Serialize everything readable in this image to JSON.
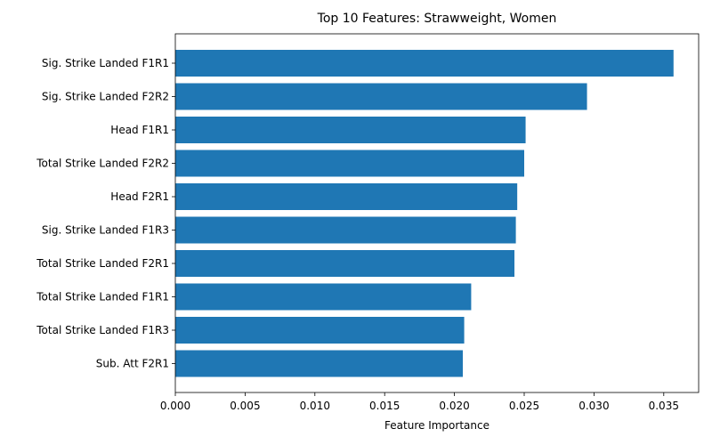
{
  "chart_data": {
    "type": "bar",
    "orientation": "horizontal",
    "title": "Top 10 Features: Strawweight, Women",
    "xlabel": "Feature Importance",
    "ylabel": "",
    "xlim": [
      0,
      0.0375
    ],
    "xticks": [
      "0.000",
      "0.005",
      "0.010",
      "0.015",
      "0.020",
      "0.025",
      "0.030",
      "0.035"
    ],
    "grid": false,
    "bar_color": "#1f77b4",
    "categories": [
      "Sig. Strike Landed F1R1",
      "Sig. Strike Landed F2R2",
      "Head F1R1",
      "Total Strike Landed F2R2",
      "Head F2R1",
      "Sig. Strike Landed F1R3",
      "Total Strike Landed F2R1",
      "Total Strike Landed F1R1",
      "Total Strike Landed F1R3",
      "Sub. Att F2R1"
    ],
    "values": [
      0.0357,
      0.0295,
      0.0251,
      0.025,
      0.0245,
      0.0244,
      0.0243,
      0.0212,
      0.0207,
      0.0206
    ]
  }
}
